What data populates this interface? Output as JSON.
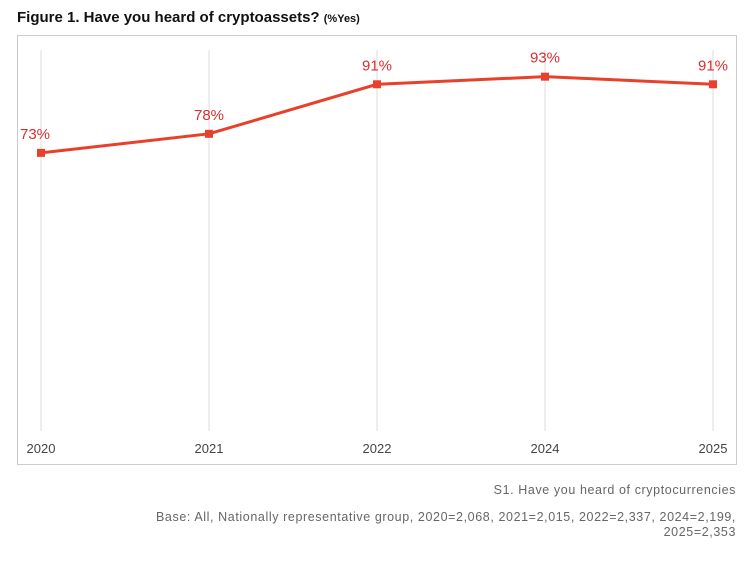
{
  "title": {
    "main": "Figure 1. Have you heard of cryptoassets?",
    "sub": "(%Yes)"
  },
  "chart_data": {
    "type": "line",
    "title": "Figure 1. Have you heard of cryptoassets? (%Yes)",
    "categories": [
      "2020",
      "2021",
      "2022",
      "2024",
      "2025"
    ],
    "series": [
      {
        "values": [
          73,
          78,
          91,
          93,
          91
        ],
        "labels": [
          "73%",
          "78%",
          "91%",
          "93%",
          "91%"
        ],
        "color": "#e8402a"
      }
    ],
    "ylim": [
      0,
      100
    ],
    "grid": "vertical",
    "legend": "none",
    "label_color": "#d42f2f"
  },
  "footnote": {
    "question": "S1. Have you heard of cryptocurrencies",
    "base_line1": "Base: All, Nationally representative group, 2020=2,068, 2021=2,015, 2022=2,337, 2024=2,199,",
    "base_line2": "2025=2,353"
  }
}
